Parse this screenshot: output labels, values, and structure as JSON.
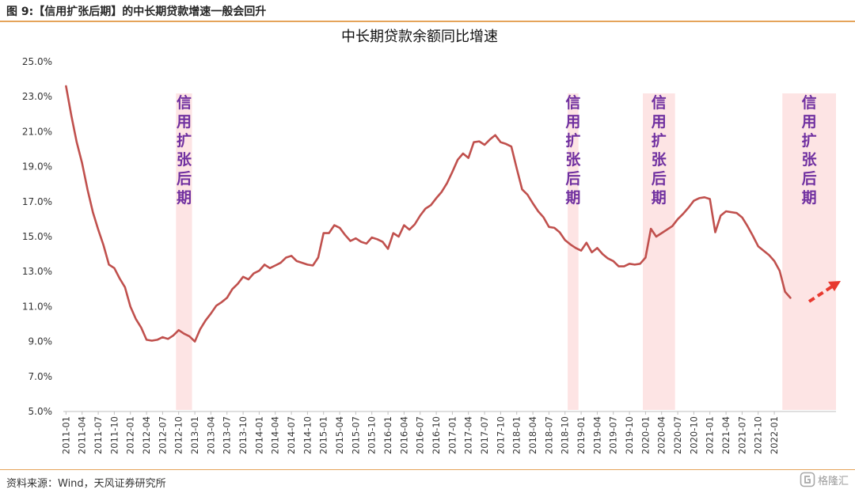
{
  "figure_title": "图 9:【信用扩张后期】的中长期贷款增速一般会回升",
  "source": "资料来源：Wind，天风证券研究所",
  "logo": {
    "icon": "gelonghui-logo-icon",
    "text": "格隆汇"
  },
  "colors": {
    "line": "#c0504d",
    "band": "#fde4e4",
    "band_text": "#7030a0",
    "arrow": "#e8392f",
    "rule": "#e5a45a"
  },
  "chart_data": {
    "type": "line",
    "title": "中长期贷款余额同比增速",
    "xlabel": "",
    "ylabel": "",
    "ylim": [
      5.0,
      25.0
    ],
    "y_ticks": [
      "5.0%",
      "7.0%",
      "9.0%",
      "11.0%",
      "13.0%",
      "15.0%",
      "17.0%",
      "19.0%",
      "21.0%",
      "23.0%",
      "25.0%"
    ],
    "x_ticks": [
      "2011-01",
      "2011-04",
      "2011-07",
      "2011-10",
      "2012-01",
      "2012-04",
      "2012-07",
      "2012-10",
      "2013-01",
      "2013-04",
      "2013-07",
      "2013-10",
      "2014-01",
      "2014-04",
      "2014-07",
      "2014-10",
      "2015-01",
      "2015-04",
      "2015-07",
      "2015-10",
      "2016-01",
      "2016-04",
      "2016-07",
      "2016-10",
      "2017-01",
      "2017-04",
      "2017-07",
      "2017-10",
      "2018-01",
      "2018-04",
      "2018-07",
      "2018-10",
      "2019-01",
      "2019-04",
      "2019-07",
      "2019-10",
      "2020-01",
      "2020-04",
      "2020-07",
      "2020-10",
      "2021-01",
      "2021-04",
      "2021-07",
      "2021-10",
      "2022-01"
    ],
    "start_month": "2011-01",
    "x_axis_end_month": "2022-12",
    "grid": false,
    "legend": "none",
    "series": [
      {
        "name": "",
        "values": [
          23.6,
          21.9,
          20.4,
          19.2,
          17.7,
          16.4,
          15.4,
          14.5,
          13.4,
          13.2,
          12.6,
          12.1,
          11.0,
          10.3,
          9.8,
          9.1,
          9.05,
          9.1,
          9.25,
          9.15,
          9.35,
          9.65,
          9.45,
          9.3,
          9.0,
          9.7,
          10.2,
          10.6,
          11.05,
          11.25,
          11.5,
          12.0,
          12.3,
          12.7,
          12.55,
          12.9,
          13.05,
          13.4,
          13.2,
          13.35,
          13.5,
          13.8,
          13.9,
          13.6,
          13.5,
          13.4,
          13.35,
          13.8,
          15.2,
          15.2,
          15.65,
          15.5,
          15.1,
          14.75,
          14.9,
          14.7,
          14.6,
          14.95,
          14.85,
          14.7,
          14.3,
          15.2,
          15.0,
          15.65,
          15.4,
          15.7,
          16.2,
          16.6,
          16.8,
          17.2,
          17.55,
          18.05,
          18.7,
          19.4,
          19.75,
          19.5,
          20.4,
          20.45,
          20.25,
          20.55,
          20.8,
          20.4,
          20.3,
          20.15,
          18.9,
          17.7,
          17.4,
          16.9,
          16.45,
          16.1,
          15.55,
          15.5,
          15.25,
          14.8,
          14.55,
          14.35,
          14.2,
          14.65,
          14.1,
          14.35,
          14.0,
          13.75,
          13.6,
          13.3,
          13.3,
          13.45,
          13.4,
          13.45,
          13.8,
          15.45,
          15.0,
          15.2,
          15.4,
          15.6,
          16.0,
          16.3,
          16.65,
          17.05,
          17.2,
          17.25,
          17.15,
          15.25,
          16.2,
          16.45,
          16.4,
          16.35,
          16.1,
          15.6,
          15.05,
          14.45,
          14.2,
          13.95,
          13.6,
          13.05,
          11.85,
          11.5
        ]
      }
    ],
    "bands": [
      {
        "start": "2012-10",
        "end": "2012-12",
        "label": "信用扩张后期"
      },
      {
        "start": "2018-11",
        "end": "2018-12",
        "label": "信用扩张后期"
      },
      {
        "start": "2020-01",
        "end": "2020-06",
        "label": "信用扩张后期"
      },
      {
        "start": "2022-03",
        "end": "2022-12",
        "label": "信用扩张后期"
      }
    ],
    "annotation": {
      "type": "dashed-arrow",
      "icon": "up-right-arrow-icon",
      "direction": "up-right"
    }
  }
}
